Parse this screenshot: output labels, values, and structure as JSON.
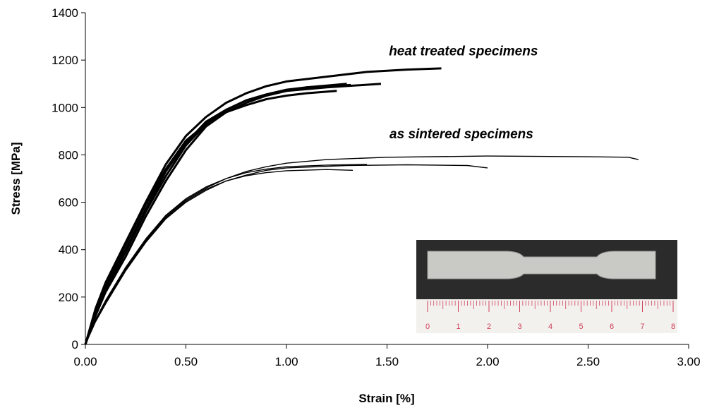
{
  "chart_data": {
    "type": "line",
    "xlabel": "Strain [%]",
    "ylabel": "Stress [MPa]",
    "xlim": [
      0,
      3
    ],
    "ylim": [
      0,
      1400
    ],
    "xticks": [
      {
        "value": 0,
        "label": "0.00"
      },
      {
        "value": 0.5,
        "label": "0.50"
      },
      {
        "value": 1,
        "label": "1.00"
      },
      {
        "value": 1.5,
        "label": "1.50"
      },
      {
        "value": 2,
        "label": "2.00"
      },
      {
        "value": 2.5,
        "label": "2.50"
      },
      {
        "value": 3,
        "label": "3.00"
      }
    ],
    "yticks": [
      0,
      200,
      400,
      600,
      800,
      1000,
      1200,
      1400
    ],
    "grid": false,
    "annotations": [
      {
        "text": "heat treated specimens",
        "x": 1.88,
        "y": 1220
      },
      {
        "text": "as sintered specimens",
        "x": 1.87,
        "y": 870
      }
    ],
    "series": [
      {
        "color": "#000000",
        "line_width": 3,
        "x": [
          0,
          0.05,
          0.1,
          0.2,
          0.3,
          0.4,
          0.5,
          0.6,
          0.7,
          0.8,
          0.9,
          1.0,
          1.2,
          1.4,
          1.6,
          1.77
        ],
        "values": [
          0,
          150,
          260,
          430,
          600,
          760,
          880,
          960,
          1020,
          1060,
          1090,
          1110,
          1130,
          1150,
          1160,
          1165
        ]
      },
      {
        "color": "#000000",
        "line_width": 3,
        "x": [
          0,
          0.05,
          0.1,
          0.2,
          0.3,
          0.4,
          0.5,
          0.6,
          0.7,
          0.8,
          0.9,
          1.0,
          1.2,
          1.47
        ],
        "values": [
          0,
          130,
          240,
          400,
          570,
          730,
          850,
          940,
          990,
          1030,
          1055,
          1070,
          1085,
          1100
        ]
      },
      {
        "color": "#000000",
        "line_width": 3,
        "x": [
          0,
          0.05,
          0.1,
          0.2,
          0.3,
          0.4,
          0.5,
          0.6,
          0.7,
          0.8,
          0.9,
          1.0,
          1.1,
          1.3
        ],
        "values": [
          0,
          120,
          220,
          370,
          540,
          690,
          820,
          920,
          980,
          1020,
          1050,
          1070,
          1085,
          1100
        ]
      },
      {
        "color": "#000000",
        "line_width": 3,
        "x": [
          0,
          0.05,
          0.1,
          0.2,
          0.3,
          0.4,
          0.5,
          0.6,
          0.7,
          0.8,
          0.9,
          1.0,
          1.1,
          1.25
        ],
        "values": [
          0,
          140,
          250,
          420,
          590,
          740,
          860,
          930,
          980,
          1010,
          1035,
          1050,
          1060,
          1070
        ]
      },
      {
        "color": "#000000",
        "line_width": 3,
        "x": [
          0,
          0.05,
          0.1,
          0.2,
          0.3,
          0.4,
          0.5,
          0.6,
          0.7,
          0.8,
          0.9,
          1.0,
          1.1,
          1.32
        ],
        "values": [
          0,
          125,
          230,
          390,
          560,
          710,
          840,
          930,
          990,
          1030,
          1055,
          1075,
          1085,
          1095
        ]
      },
      {
        "color": "#000000",
        "line_width": 1.4,
        "x": [
          0,
          0.05,
          0.1,
          0.2,
          0.3,
          0.4,
          0.5,
          0.6,
          0.7,
          0.8,
          0.9,
          1.0,
          1.2,
          1.5,
          2.0,
          2.5,
          2.7,
          2.75
        ],
        "values": [
          0,
          100,
          180,
          320,
          440,
          540,
          610,
          660,
          700,
          730,
          750,
          765,
          780,
          790,
          795,
          792,
          790,
          780
        ]
      },
      {
        "color": "#000000",
        "line_width": 1.4,
        "x": [
          0,
          0.05,
          0.1,
          0.2,
          0.3,
          0.4,
          0.5,
          0.6,
          0.7,
          0.8,
          0.9,
          1.0,
          1.3,
          1.6,
          1.9,
          2.0
        ],
        "values": [
          0,
          95,
          170,
          310,
          430,
          530,
          600,
          650,
          690,
          715,
          735,
          745,
          755,
          758,
          755,
          745
        ]
      },
      {
        "color": "#000000",
        "line_width": 1.4,
        "x": [
          0,
          0.05,
          0.1,
          0.2,
          0.3,
          0.4,
          0.5,
          0.6,
          0.7,
          0.8,
          0.9,
          1.0,
          1.2,
          1.4
        ],
        "values": [
          0,
          105,
          185,
          325,
          445,
          545,
          615,
          665,
          700,
          725,
          740,
          750,
          757,
          760
        ]
      },
      {
        "color": "#000000",
        "line_width": 1.4,
        "x": [
          0,
          0.05,
          0.1,
          0.2,
          0.3,
          0.4,
          0.5,
          0.6,
          0.7,
          0.8,
          0.9,
          1.0,
          1.2,
          1.33
        ],
        "values": [
          0,
          100,
          175,
          315,
          435,
          535,
          605,
          655,
          690,
          712,
          725,
          733,
          738,
          735
        ]
      }
    ]
  },
  "inset": {
    "ruler_labels": [
      "0",
      "1",
      "2",
      "3",
      "4",
      "5",
      "6",
      "7",
      "8"
    ]
  }
}
